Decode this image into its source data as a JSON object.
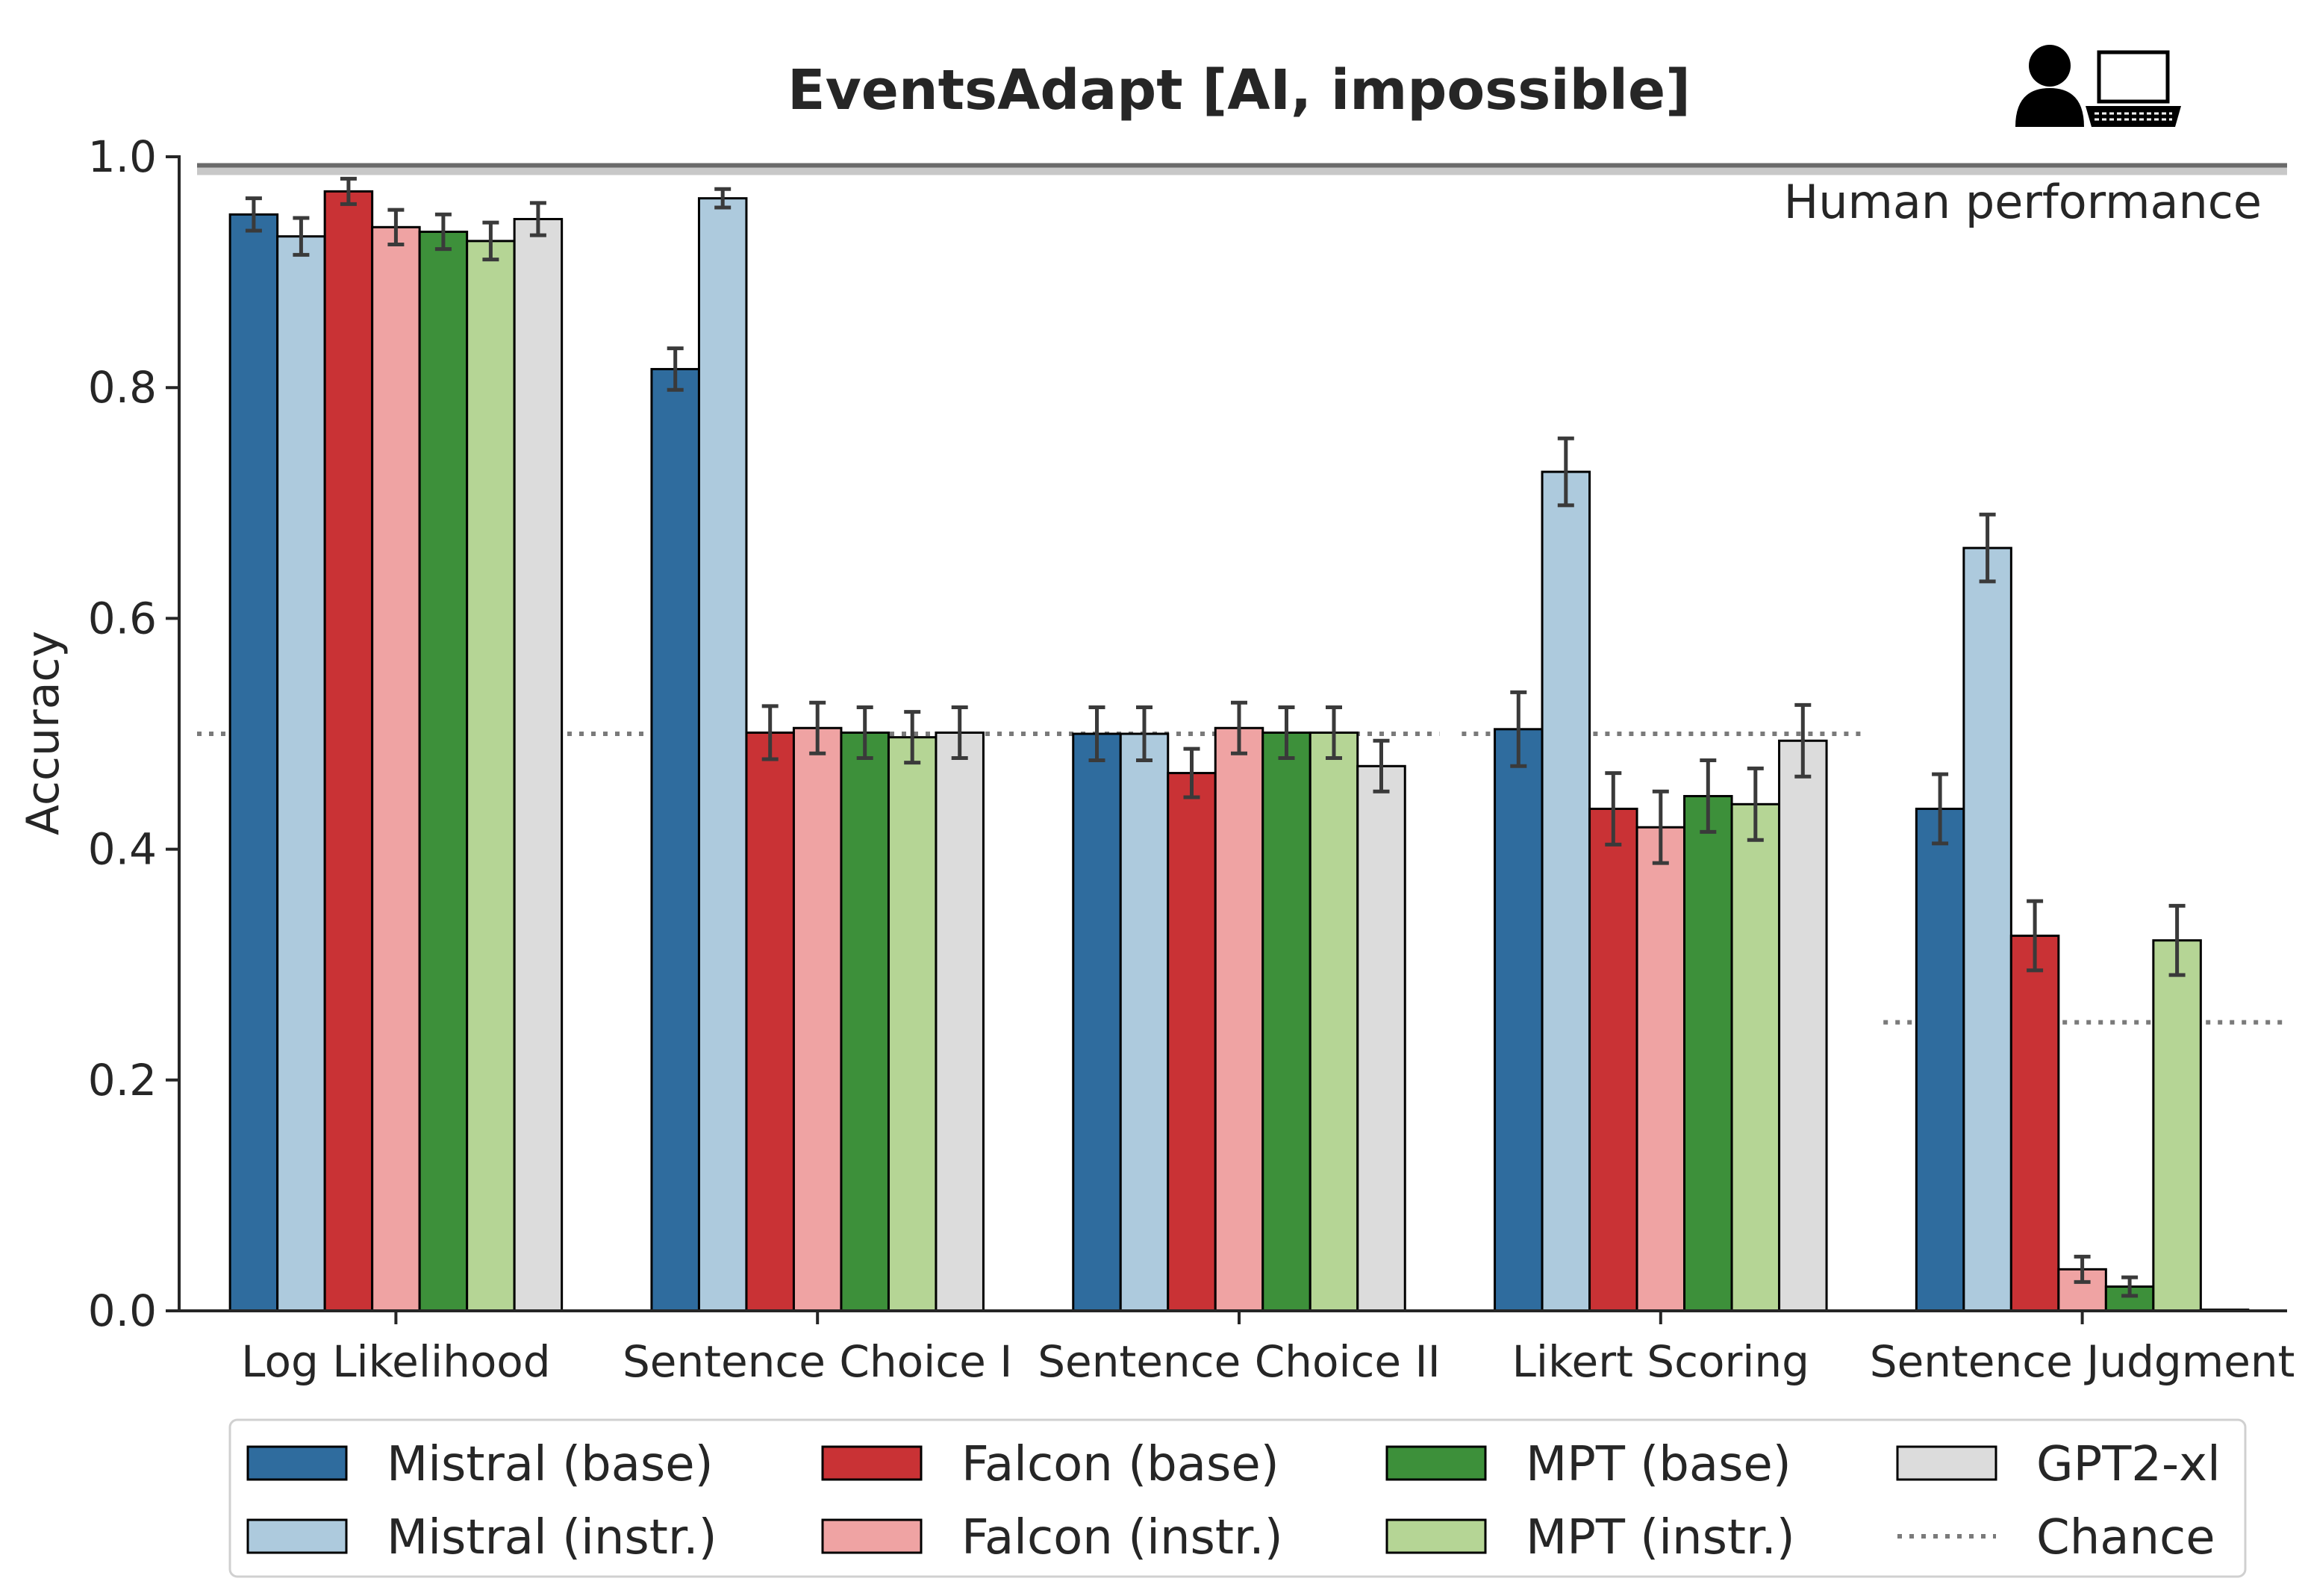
{
  "chart_data": {
    "type": "bar",
    "title": "EventsAdapt [AI, impossible]",
    "xlabel": "",
    "ylabel": "Accuracy",
    "ylim": [
      0,
      1.0
    ],
    "yticks": [
      "0.0",
      "0.2",
      "0.4",
      "0.6",
      "0.8",
      "1.0"
    ],
    "categories": [
      "Log Likelihood",
      "Sentence Choice I",
      "Sentence Choice II",
      "Likert Scoring",
      "Sentence Judgment"
    ],
    "series": [
      {
        "name": "Mistral (base)",
        "color": "#2f6c9e",
        "values": [
          0.95,
          0.816,
          0.5,
          0.504,
          0.435
        ],
        "errors": [
          0.014,
          0.018,
          0.023,
          0.032,
          0.03
        ]
      },
      {
        "name": "Mistral (instr.)",
        "color": "#adcadd",
        "values": [
          0.931,
          0.964,
          0.5,
          0.727,
          0.661
        ],
        "errors": [
          0.016,
          0.008,
          0.023,
          0.029,
          0.029
        ]
      },
      {
        "name": "Falcon (base)",
        "color": "#c93235",
        "values": [
          0.97,
          0.501,
          0.466,
          0.435,
          0.325
        ],
        "errors": [
          0.011,
          0.023,
          0.021,
          0.031,
          0.03
        ]
      },
      {
        "name": "Falcon (instr.)",
        "color": "#efa3a3",
        "values": [
          0.939,
          0.505,
          0.505,
          0.419,
          0.036
        ],
        "errors": [
          0.015,
          0.022,
          0.022,
          0.031,
          0.011
        ]
      },
      {
        "name": "MPT (base)",
        "color": "#3d903a",
        "values": [
          0.935,
          0.501,
          0.501,
          0.446,
          0.021
        ],
        "errors": [
          0.015,
          0.022,
          0.022,
          0.031,
          0.008
        ]
      },
      {
        "name": "MPT (instr.)",
        "color": "#b5d595",
        "values": [
          0.927,
          0.497,
          0.501,
          0.439,
          0.321
        ],
        "errors": [
          0.016,
          0.022,
          0.022,
          0.031,
          0.03
        ]
      },
      {
        "name": "GPT2-xl",
        "color": "#dcdcdc",
        "values": [
          0.946,
          0.501,
          0.472,
          0.494,
          0.001
        ],
        "errors": [
          0.014,
          0.022,
          0.022,
          0.031,
          0.0
        ]
      }
    ],
    "chance": {
      "name": "Chance",
      "values": [
        0.5,
        0.5,
        0.5,
        0.5,
        0.25
      ]
    },
    "human": {
      "label": "Human performance",
      "value": 0.99
    },
    "legend_position": "bottom"
  }
}
